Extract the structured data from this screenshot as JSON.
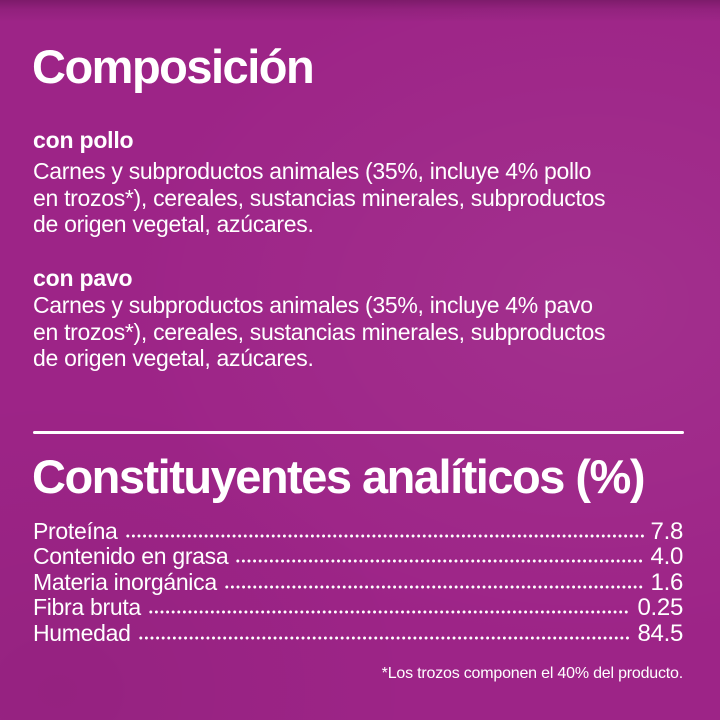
{
  "colors": {
    "background": "#9D2487",
    "text": "#FFFFFF"
  },
  "composition": {
    "title": "Composición",
    "sections": [
      {
        "heading": "con pollo",
        "lines": [
          "Carnes y subproductos animales (35%, incluye 4% pollo",
          "en trozos*), cereales, sustancias minerales, subproductos",
          "de origen vegetal, azúcares."
        ]
      },
      {
        "heading": "con pavo",
        "lines": [
          "Carnes y subproductos animales (35%, incluye 4% pavo",
          "en trozos*), cereales, sustancias minerales, subproductos",
          "de origen vegetal, azúcares."
        ]
      }
    ]
  },
  "analytical": {
    "title": "Constituyentes analíticos (%)",
    "rows": [
      {
        "label": "Proteína",
        "value": "7.8"
      },
      {
        "label": "Contenido en grasa",
        "value": "4.0"
      },
      {
        "label": "Materia inorgánica",
        "value": "1.6"
      },
      {
        "label": "Fibra bruta",
        "value": "0.25"
      },
      {
        "label": "Humedad",
        "value": "84.5"
      }
    ]
  },
  "footnote": "*Los trozos componen el 40% del producto."
}
